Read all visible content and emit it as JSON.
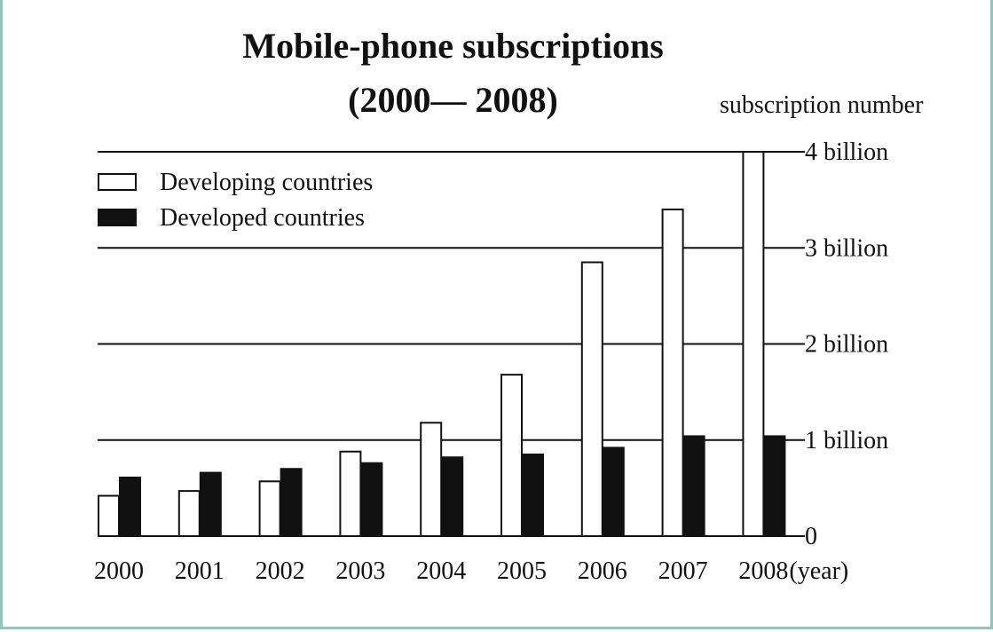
{
  "chart_data": {
    "type": "bar",
    "title_line1": "Mobile-phone subscriptions",
    "title_line2": "(2000— 2008)",
    "ylabel": "subscription number",
    "xlabel": "(year)",
    "categories": [
      "2000",
      "2001",
      "2002",
      "2003",
      "2004",
      "2005",
      "2006",
      "2007",
      "2008"
    ],
    "ylim": [
      0,
      4
    ],
    "y_ticks": [
      {
        "value": 0,
        "label": "0"
      },
      {
        "value": 1,
        "label": "1 billion"
      },
      {
        "value": 2,
        "label": "2 billion"
      },
      {
        "value": 3,
        "label": "3 billion"
      },
      {
        "value": 4,
        "label": "4 billion"
      }
    ],
    "series": [
      {
        "name": "Developing countries",
        "fill": "#ffffff",
        "stroke": "#111111",
        "values": [
          0.42,
          0.47,
          0.57,
          0.88,
          1.18,
          1.68,
          2.85,
          3.4,
          4.0
        ]
      },
      {
        "name": "Developed countries",
        "fill": "#111111",
        "stroke": "#111111",
        "values": [
          0.61,
          0.66,
          0.7,
          0.76,
          0.82,
          0.85,
          0.92,
          1.04,
          1.04
        ]
      }
    ],
    "grid": true,
    "legend_position": "top-left"
  }
}
